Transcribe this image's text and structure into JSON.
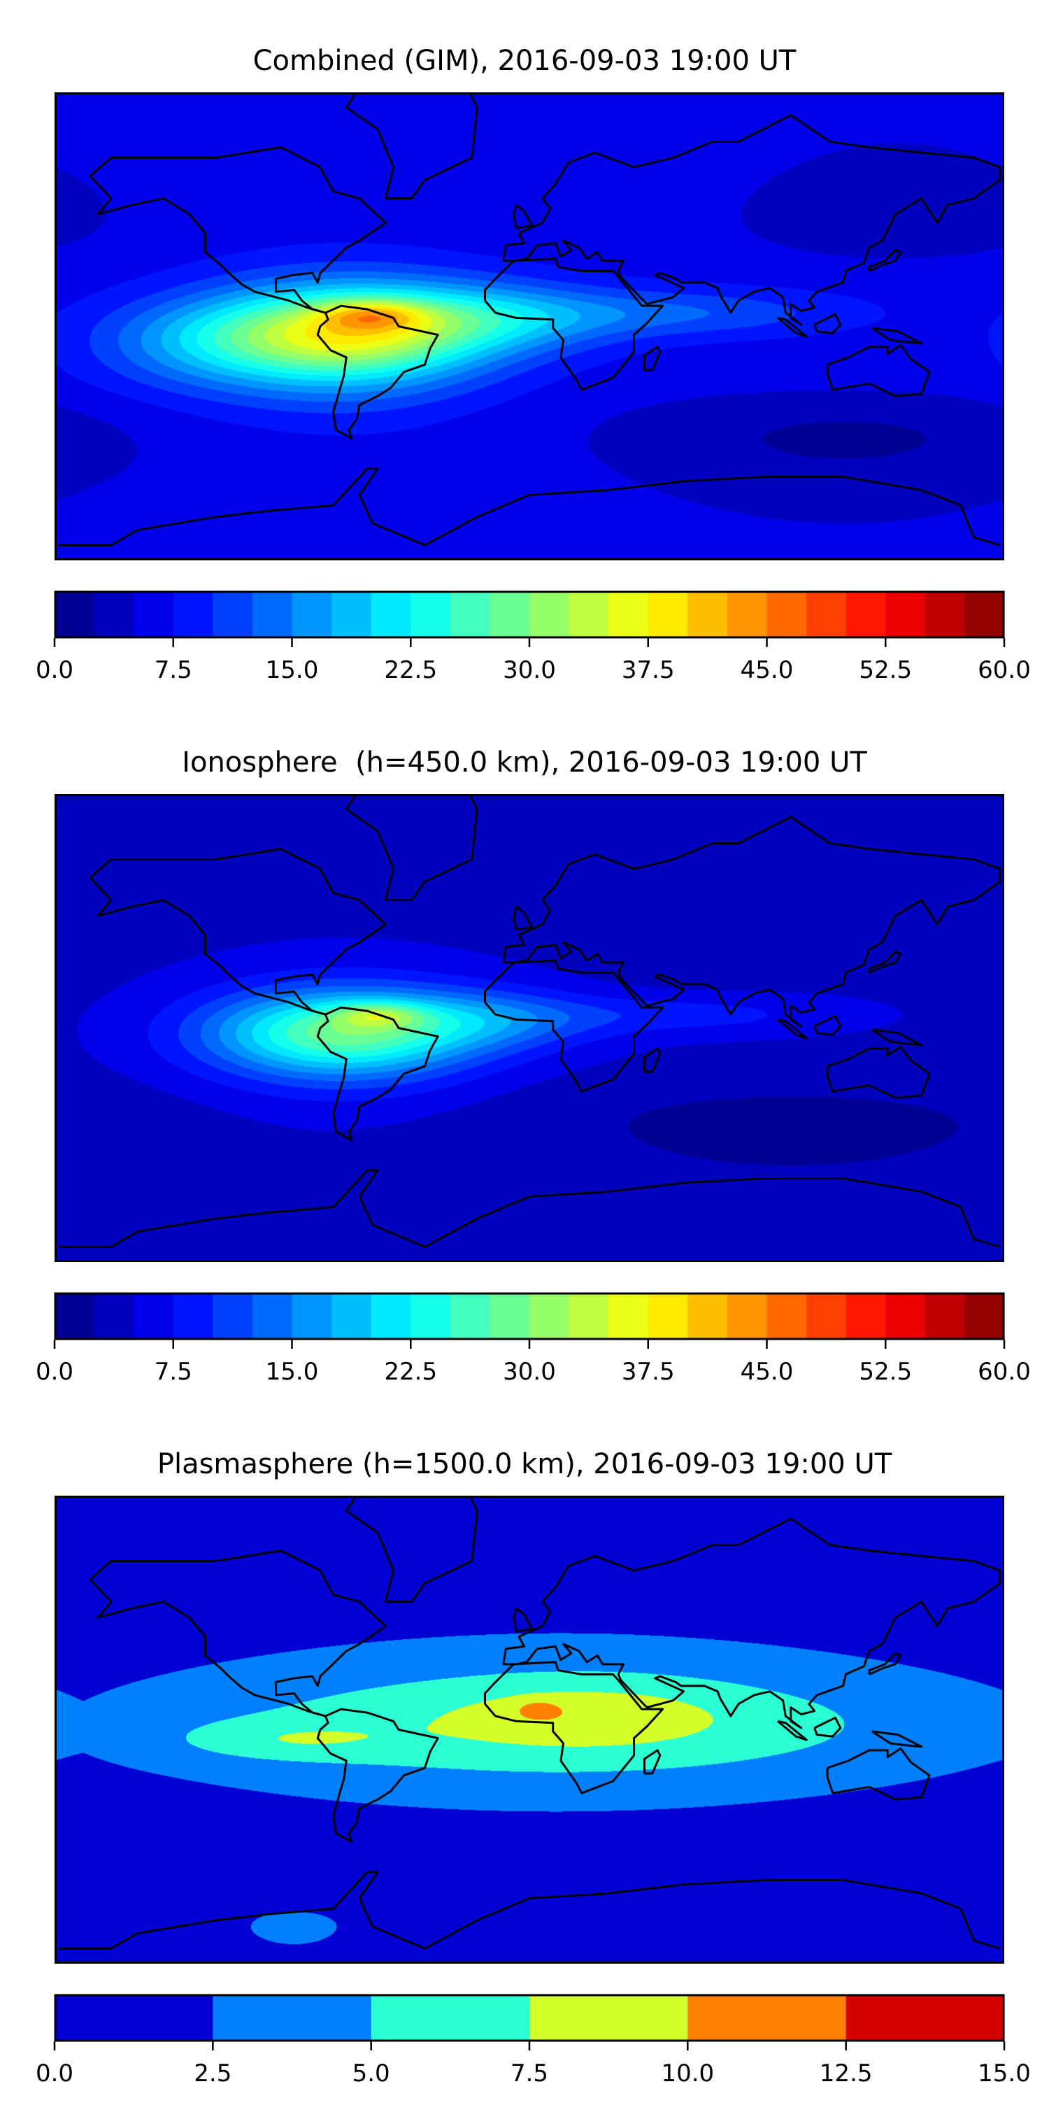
{
  "panels": [
    {
      "title": "Combined (GIM), 2016-09-03 19:00 UT",
      "colorbar": {
        "min": 0,
        "max": 60,
        "step": 2.5,
        "colormap": "jet",
        "ticks": [
          "0.0",
          "7.5",
          "15.0",
          "22.5",
          "30.0",
          "37.5",
          "45.0",
          "52.5",
          "60.0"
        ]
      }
    },
    {
      "title": "Ionosphere  (h=450.0 km), 2016-09-03 19:00 UT",
      "colorbar": {
        "min": 0,
        "max": 60,
        "step": 2.5,
        "colormap": "jet",
        "ticks": [
          "0.0",
          "7.5",
          "15.0",
          "22.5",
          "30.0",
          "37.5",
          "45.0",
          "52.5",
          "60.0"
        ]
      }
    },
    {
      "title": "Plasmasphere (h=1500.0 km), 2016-09-03 19:00 UT",
      "colorbar": {
        "min": 0,
        "max": 15,
        "step": 2.5,
        "colormap": "jet",
        "ticks": [
          "0.0",
          "2.5",
          "5.0",
          "7.5",
          "10.0",
          "12.5",
          "15.0"
        ]
      }
    }
  ],
  "chart_data": [
    {
      "type": "heatmap",
      "title": "Combined (GIM), 2016-09-03 19:00 UT",
      "range": [
        0,
        60
      ],
      "levels_step": 2.5,
      "features": {
        "peak_value_approx": 47.5,
        "peak_location": "northern South America",
        "background_approx": 7.5
      }
    },
    {
      "type": "heatmap",
      "title": "Ionosphere  (h=450.0 km), 2016-09-03 19:00 UT",
      "range": [
        0,
        60
      ],
      "levels_step": 2.5,
      "features": {
        "peak_value_approx": 40,
        "peak_location": "northern South America",
        "background_approx": 5
      }
    },
    {
      "type": "heatmap",
      "title": "Plasmasphere (h=1500.0 km), 2016-09-03 19:00 UT",
      "range": [
        0,
        15
      ],
      "levels_step": 2.5,
      "features": {
        "peak_value_approx": 11,
        "peak_location": "West Africa",
        "background_approx": 1.5
      }
    }
  ]
}
